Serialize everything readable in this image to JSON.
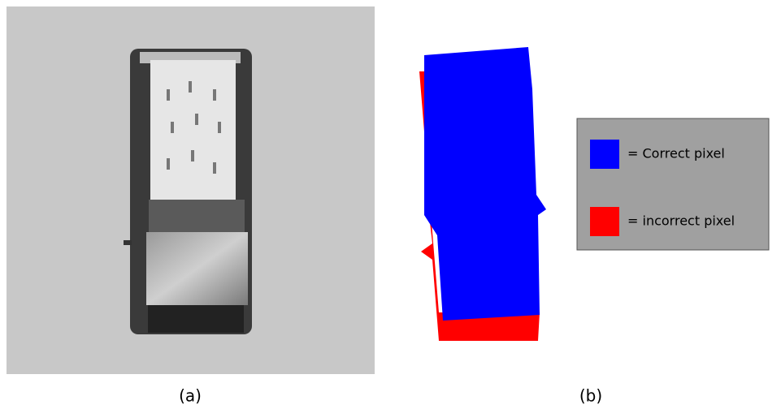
{
  "panels": [
    {
      "caption": "(a)"
    },
    {
      "caption": "(b)"
    }
  ],
  "legend": {
    "items": [
      {
        "label": "= Correct pixel",
        "color": "#0000ff"
      },
      {
        "label": "= incorrect pixel",
        "color": "#ff0000"
      }
    ]
  }
}
